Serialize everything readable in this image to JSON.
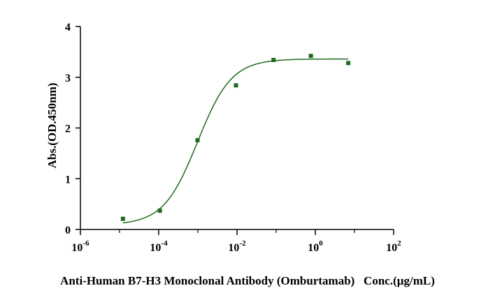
{
  "chart_data": {
    "type": "scatter",
    "xlabel": "Anti-Human B7-H3 Monoclonal Antibody (Omburtamab)   Conc.(µg/mL)",
    "ylabel": "Abs.(OD.450nm)",
    "x_scale": "log10",
    "xlim": [
      1e-06,
      100
    ],
    "ylim": [
      0,
      4
    ],
    "x_ticks": [
      {
        "base": "10",
        "exp": "-6"
      },
      {
        "base": "10",
        "exp": "-4"
      },
      {
        "base": "10",
        "exp": "-2"
      },
      {
        "base": "10",
        "exp": "0"
      },
      {
        "base": "10",
        "exp": "2"
      }
    ],
    "y_ticks": [
      "0",
      "1",
      "2",
      "3",
      "4"
    ],
    "grid": false,
    "color": "#1e6b1e",
    "points": [
      {
        "x": 1.22e-05,
        "y": 0.21
      },
      {
        "x": 0.000107,
        "y": 0.37
      },
      {
        "x": 0.00098,
        "y": 1.76
      },
      {
        "x": 0.0094,
        "y": 2.84
      },
      {
        "x": 0.0857,
        "y": 3.34
      },
      {
        "x": 0.769,
        "y": 3.42
      },
      {
        "x": 6.94,
        "y": 3.28
      }
    ],
    "fit_curve": {
      "model": "4PL",
      "bottom": 0.09,
      "top": 3.36,
      "ec50": 0.00098,
      "hill": 1.0
    }
  }
}
